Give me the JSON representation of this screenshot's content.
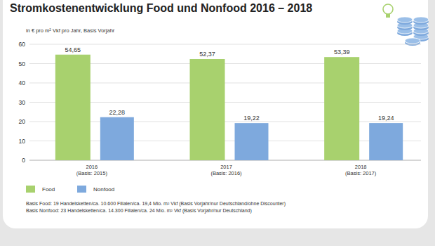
{
  "chart_data": {
    "type": "bar",
    "title": "Stromkostenentwicklung Food und Nonfood 2016 – 2018",
    "subtitle": "in € pro m² Vkf pro Jahr, Basis Vorjahr",
    "categories": [
      "2016\n(Basis: 2015)",
      "2017\n(Basis: 2016)",
      "2018\n(Basis: 2017)"
    ],
    "series": [
      {
        "name": "Food",
        "color": "#a8d16e",
        "values": [
          54.65,
          52.37,
          53.39
        ],
        "value_labels": [
          "54,65",
          "52,37",
          "53,39"
        ]
      },
      {
        "name": "Nonfood",
        "color": "#7ea9dd",
        "values": [
          22.28,
          19.22,
          19.24
        ],
        "value_labels": [
          "22,28",
          "19,22",
          "19,24"
        ]
      }
    ],
    "ylim": [
      0,
      60
    ],
    "yticks": [
      0,
      10,
      20,
      30,
      40,
      50,
      60
    ],
    "grid": true,
    "data_labels": true,
    "legend": "bottom-left",
    "notes": [
      "Basis Food: 19 Handelsketten/ca. 10.600 Filialen/ca. 19,4 Mio. m² Vkf (Basis Vorjahr/nur Deutschland/ohne Discounter)",
      "Basis Nonfood: 23 Handelsketten/ca. 14.300 Filialen/ca. 24 Mio. m² Vkf (Basis Vorjahr/nur Deutschland)"
    ]
  }
}
